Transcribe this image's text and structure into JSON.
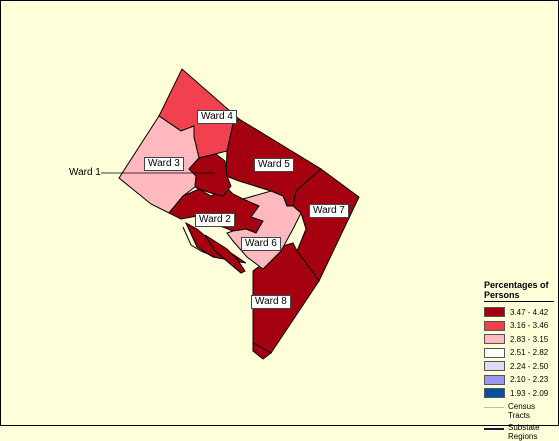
{
  "wards": [
    {
      "name": "Ward 1",
      "color": "#A50010"
    },
    {
      "name": "Ward 2",
      "color": "#A50010"
    },
    {
      "name": "Ward 3",
      "color": "#FFB9BF"
    },
    {
      "name": "Ward 4",
      "color": "#F2414E"
    },
    {
      "name": "Ward 5",
      "color": "#A50010"
    },
    {
      "name": "Ward 6",
      "color": "#FFB9BF"
    },
    {
      "name": "Ward 7",
      "color": "#A50010"
    },
    {
      "name": "Ward 8",
      "color": "#A50010"
    }
  ],
  "legend": {
    "title": "Percentages of Persons",
    "classes": [
      {
        "label": "3.47 - 4.42",
        "color": "#A50010"
      },
      {
        "label": "3.16 - 3.46",
        "color": "#F2414E"
      },
      {
        "label": "2.83 - 3.15",
        "color": "#FFB9BF"
      },
      {
        "label": "2.51 - 2.82",
        "color": "#FFFFFF"
      },
      {
        "label": "2.24 - 2.50",
        "color": "#DCDCF5"
      },
      {
        "label": "2.10 - 2.23",
        "color": "#9999EE"
      },
      {
        "label": "1.93 - 2.09",
        "color": "#0050A0"
      }
    ],
    "census_tracts": "Census Tracts",
    "substate_regions": "Substate Regions"
  },
  "colors": {
    "background": "#FFFFD9",
    "boundary": "#000000",
    "tract_line": "#BBBBBB"
  }
}
